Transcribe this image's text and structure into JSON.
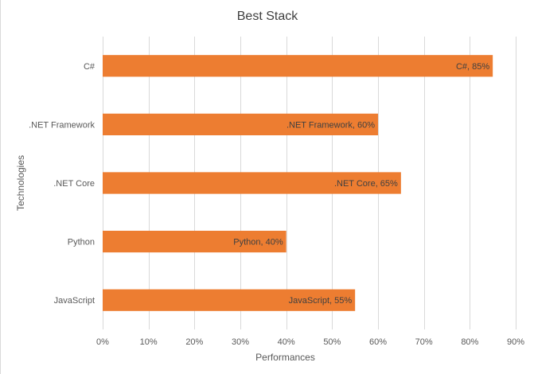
{
  "chart_data": {
    "type": "bar",
    "orientation": "horizontal",
    "title": "Best Stack",
    "xlabel": "Performances",
    "ylabel": "Technologies",
    "categories": [
      "C#",
      ".NET Framework",
      ".NET Core",
      "Python",
      "JavaScript"
    ],
    "values": [
      85,
      60,
      65,
      40,
      55
    ],
    "data_labels": [
      "C#, 85%",
      ".NET Framework, 60%",
      ".NET Core, 65%",
      "Python, 40%",
      "JavaScript, 55%"
    ],
    "xlim": [
      0,
      90
    ],
    "x_ticks": [
      0,
      10,
      20,
      30,
      40,
      50,
      60,
      70,
      80,
      90
    ],
    "x_tick_labels": [
      "0%",
      "10%",
      "20%",
      "30%",
      "40%",
      "50%",
      "60%",
      "70%",
      "80%",
      "90%"
    ],
    "grid": "vertical",
    "legend": "none",
    "bar_color": "#ED7D31",
    "grid_color": "#D9D9D9",
    "text_color": "#595959",
    "title_color": "#404040"
  }
}
